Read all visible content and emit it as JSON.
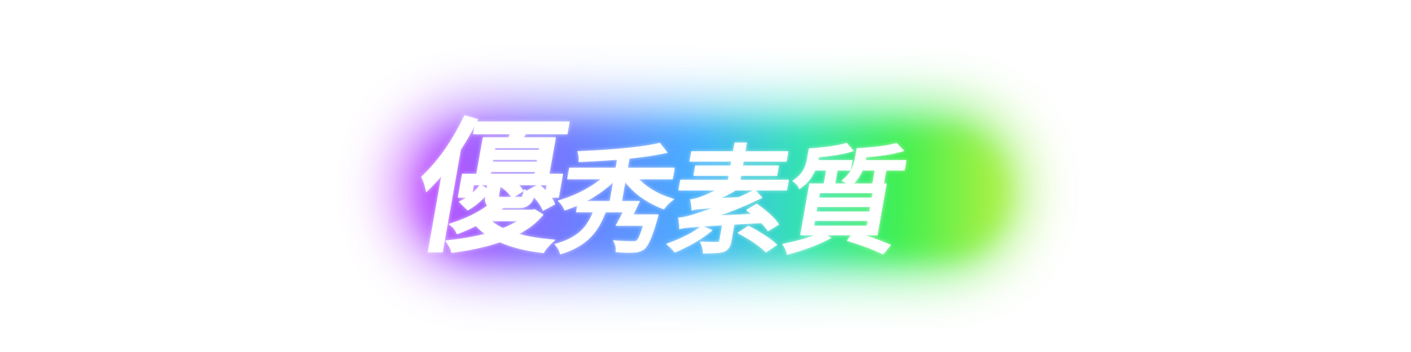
{
  "title": {
    "chars": [
      "優",
      "秀",
      "素",
      "質"
    ]
  },
  "colors": {
    "text": "#ffffff",
    "background": "#ffffff",
    "glow_gradient": [
      "#d04cff",
      "#7b6cff",
      "#3fa8ff",
      "#2fe0c8",
      "#33ee5a",
      "#a8f040"
    ]
  }
}
